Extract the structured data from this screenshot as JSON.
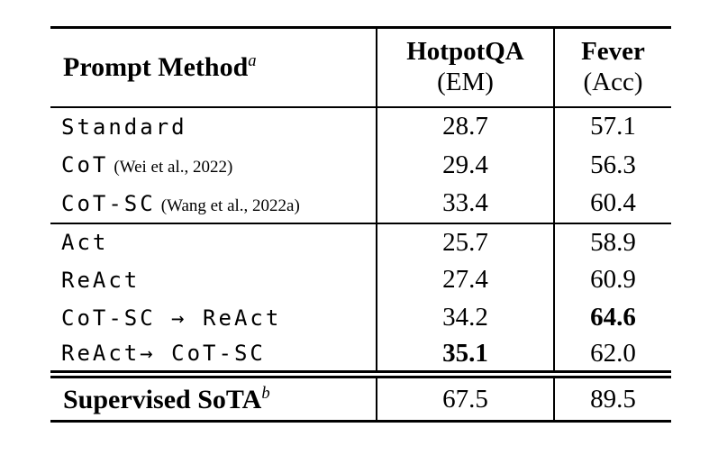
{
  "table": {
    "header": {
      "method_label": "Prompt Method",
      "method_superscript": "a",
      "col2_title": "HotpotQA",
      "col2_subtitle": "(EM)",
      "col3_title": "Fever",
      "col3_subtitle": "(Acc)"
    },
    "group1": [
      {
        "method": "Standard",
        "citation": "",
        "em": "28.7",
        "acc": "57.1",
        "em_bold": false,
        "acc_bold": false
      },
      {
        "method": "CoT",
        "citation": "(Wei et al., 2022)",
        "em": "29.4",
        "acc": "56.3",
        "em_bold": false,
        "acc_bold": false
      },
      {
        "method": "CoT-SC",
        "citation": "(Wang et al., 2022a)",
        "em": "33.4",
        "acc": "60.4",
        "em_bold": false,
        "acc_bold": false
      }
    ],
    "group2": [
      {
        "method": "Act",
        "citation": "",
        "em": "25.7",
        "acc": "58.9",
        "em_bold": false,
        "acc_bold": false
      },
      {
        "method": "ReAct",
        "citation": "",
        "em": "27.4",
        "acc": "60.9",
        "em_bold": false,
        "acc_bold": false
      },
      {
        "method": "CoT-SC → ReAct",
        "citation": "",
        "em": "34.2",
        "acc": "64.6",
        "em_bold": false,
        "acc_bold": true
      },
      {
        "method": "ReAct→ CoT-SC",
        "citation": "",
        "em": "35.1",
        "acc": "62.0",
        "em_bold": true,
        "acc_bold": false
      }
    ],
    "footer": {
      "method_label": "Supervised SoTA",
      "method_superscript": "b",
      "em": "67.5",
      "acc": "89.5"
    },
    "colors": {
      "text": "#000000",
      "background": "#ffffff",
      "rule": "#000000"
    }
  }
}
